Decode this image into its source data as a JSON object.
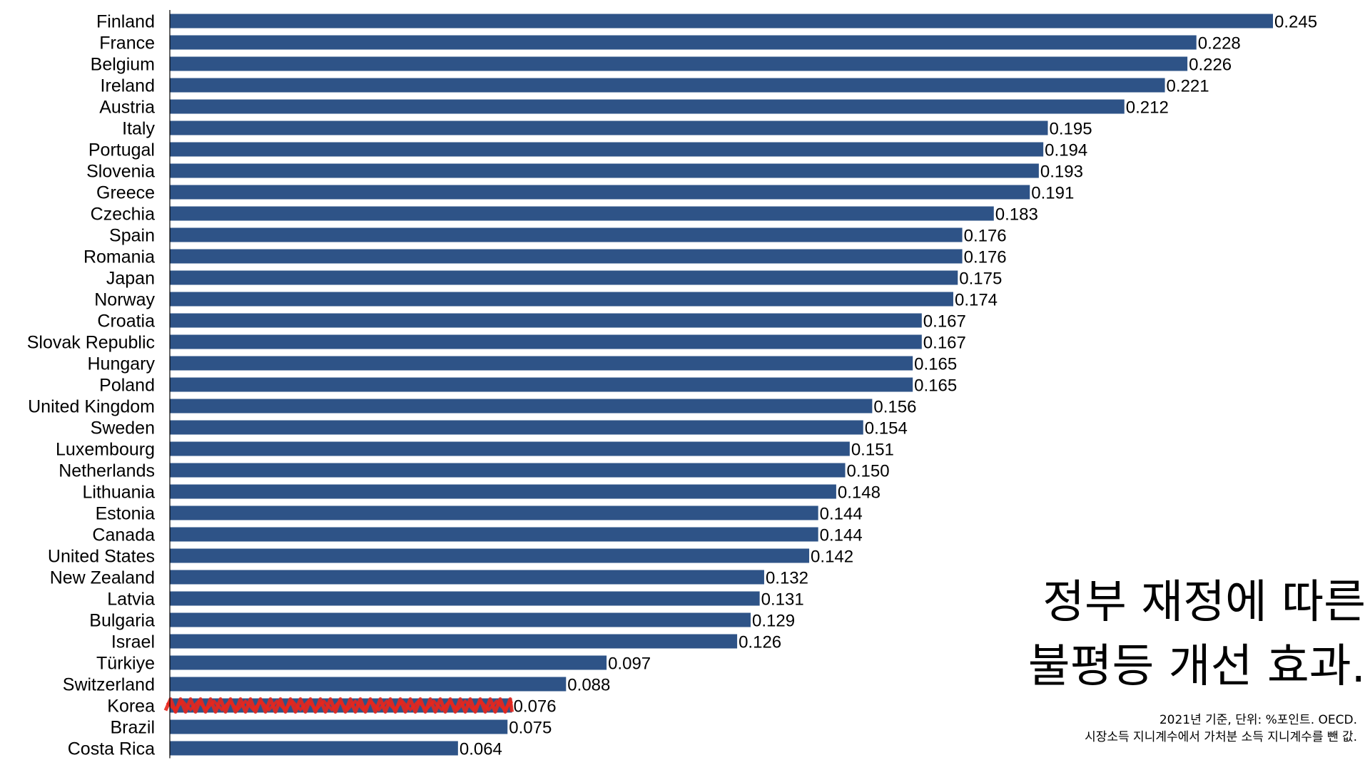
{
  "chart_data": {
    "type": "bar",
    "orientation": "horizontal",
    "categories": [
      "Finland",
      "France",
      "Belgium",
      "Ireland",
      "Austria",
      "Italy",
      "Portugal",
      "Slovenia",
      "Greece",
      "Czechia",
      "Spain",
      "Romania",
      "Japan",
      "Norway",
      "Croatia",
      "Slovak Republic",
      "Hungary",
      "Poland",
      "United Kingdom",
      "Sweden",
      "Luxembourg",
      "Netherlands",
      "Lithuania",
      "Estonia",
      "Canada",
      "United States",
      "New Zealand",
      "Latvia",
      "Bulgaria",
      "Israel",
      "Türkiye",
      "Switzerland",
      "Korea",
      "Brazil",
      "Costa Rica"
    ],
    "values": [
      0.245,
      0.228,
      0.226,
      0.221,
      0.212,
      0.195,
      0.194,
      0.193,
      0.191,
      0.183,
      0.176,
      0.176,
      0.175,
      0.174,
      0.167,
      0.167,
      0.165,
      0.165,
      0.156,
      0.154,
      0.151,
      0.15,
      0.148,
      0.144,
      0.144,
      0.142,
      0.132,
      0.131,
      0.129,
      0.126,
      0.097,
      0.088,
      0.076,
      0.075,
      0.064
    ],
    "value_labels": [
      "0.245",
      "0.228",
      "0.226",
      "0.221",
      "0.212",
      "0.195",
      "0.194",
      "0.193",
      "0.191",
      "0.183",
      "0.176",
      "0.176",
      "0.175",
      "0.174",
      "0.167",
      "0.167",
      "0.165",
      "0.165",
      "0.156",
      "0.154",
      "0.151",
      "0.150",
      "0.148",
      "0.144",
      "0.144",
      "0.142",
      "0.132",
      "0.131",
      "0.129",
      "0.126",
      "0.097",
      "0.088",
      "0.076",
      "0.075",
      "0.064"
    ],
    "highlight_category": "Korea",
    "xlim": [
      0,
      0.245
    ],
    "grid": false,
    "title_lines": [
      "정부 재정에 따른",
      "불평등 개선 효과."
    ],
    "note_lines": [
      "2021년 기준, 단위: %포인트. OECD.",
      "시장소득 지니계수에서 가처분 소득 지니계수를 뺀 값."
    ]
  },
  "colors": {
    "bar": "#2e5387",
    "highlight_scribble": "#e8261c",
    "axis": "#000000"
  }
}
